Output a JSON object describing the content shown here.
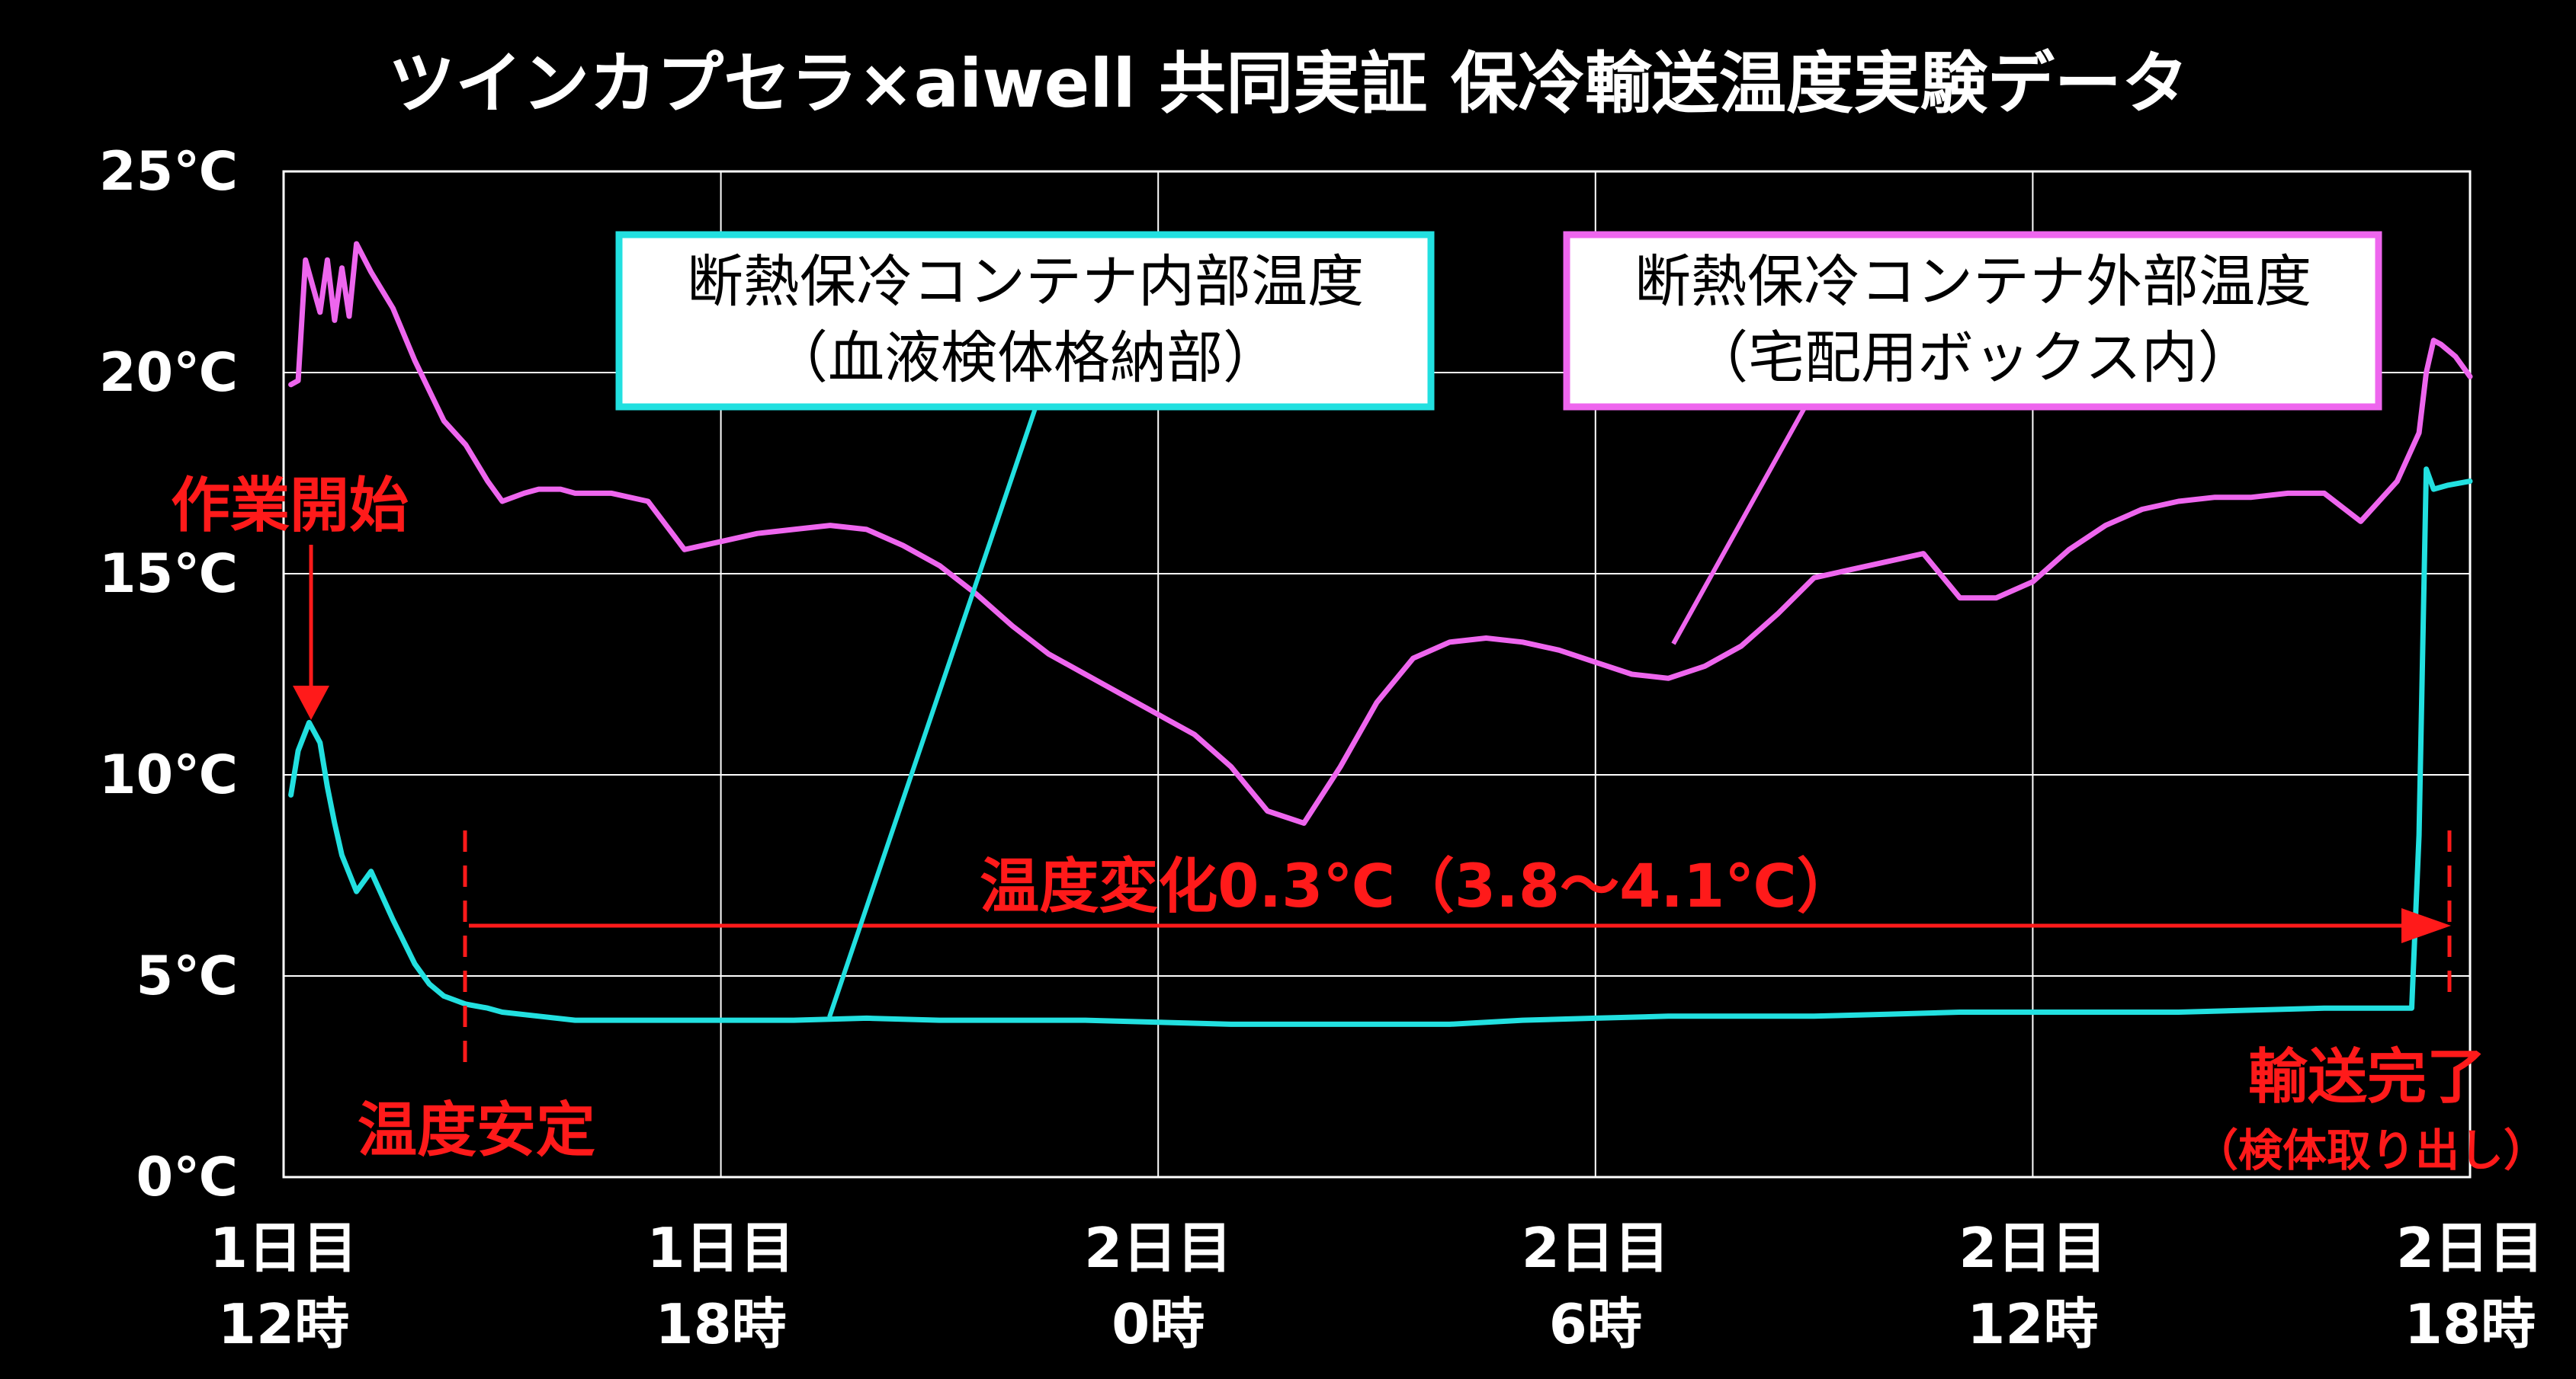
{
  "chart_data": {
    "type": "line",
    "title": "ツインカプセラ×aiwell 共同実証 保冷輸送温度実験データ",
    "y_ticks": [
      "0℃",
      "5℃",
      "10℃",
      "15℃",
      "20℃",
      "25℃"
    ],
    "ylim": [
      0,
      25
    ],
    "x_ticks": [
      {
        "day": "1日目",
        "time": "12時"
      },
      {
        "day": "1日目",
        "time": "18時"
      },
      {
        "day": "2日目",
        "time": "0時"
      },
      {
        "day": "2日目",
        "time": "6時"
      },
      {
        "day": "2日目",
        "time": "12時"
      },
      {
        "day": "2日目",
        "time": "18時"
      }
    ],
    "xlim_hours": [
      0,
      30
    ],
    "grid": true,
    "series": [
      {
        "name": "断熱保冷コンテナ外部温度（宅配用ボックス内）",
        "color": "#ee66ee",
        "x": [
          0.1,
          0.2,
          0.3,
          0.5,
          0.6,
          0.7,
          0.8,
          0.9,
          1.0,
          1.2,
          1.5,
          1.8,
          2.2,
          2.5,
          2.8,
          3.0,
          3.3,
          3.5,
          3.8,
          4.0,
          4.5,
          5.0,
          5.5,
          6.0,
          6.5,
          7.0,
          7.5,
          8.0,
          8.5,
          9.0,
          9.5,
          10.0,
          10.5,
          11.0,
          11.5,
          12.0,
          12.5,
          13.0,
          13.5,
          14.0,
          14.5,
          15.0,
          15.5,
          16.0,
          16.5,
          17.0,
          17.5,
          18.0,
          18.5,
          19.0,
          19.5,
          20.0,
          20.5,
          21.0,
          21.5,
          22.0,
          22.5,
          23.0,
          23.5,
          24.0,
          24.5,
          25.0,
          25.5,
          26.0,
          26.5,
          27.0,
          27.5,
          28.0,
          28.5,
          29.0,
          29.3,
          29.4,
          29.5,
          29.6,
          29.8,
          30.0
        ],
        "y": [
          19.7,
          19.8,
          22.8,
          21.5,
          22.8,
          21.3,
          22.6,
          21.4,
          23.2,
          22.5,
          21.6,
          20.3,
          18.8,
          18.2,
          17.3,
          16.8,
          17.0,
          17.1,
          17.1,
          17.0,
          17.0,
          16.8,
          15.6,
          15.8,
          16.0,
          16.1,
          16.2,
          16.1,
          15.7,
          15.2,
          14.5,
          13.7,
          13.0,
          12.5,
          12.0,
          11.5,
          11.0,
          10.2,
          9.1,
          8.8,
          10.2,
          11.8,
          12.9,
          13.3,
          13.4,
          13.3,
          13.1,
          12.8,
          12.5,
          12.4,
          12.7,
          13.2,
          14.0,
          14.9,
          15.1,
          15.3,
          15.5,
          14.4,
          14.4,
          14.8,
          15.6,
          16.2,
          16.6,
          16.8,
          16.9,
          16.9,
          17.0,
          17.0,
          16.3,
          17.3,
          18.5,
          20.0,
          20.8,
          20.7,
          20.4,
          19.9
        ]
      },
      {
        "name": "断熱保冷コンテナ内部温度（血液検体格納部）",
        "color": "#22e0e0",
        "x": [
          0.1,
          0.2,
          0.35,
          0.5,
          0.6,
          0.7,
          0.8,
          1.0,
          1.2,
          1.5,
          1.8,
          2.0,
          2.2,
          2.5,
          2.8,
          3.0,
          3.5,
          4.0,
          5.0,
          6.0,
          7.0,
          8.0,
          9.0,
          10.0,
          11.0,
          12.0,
          13.0,
          14.0,
          15.0,
          16.0,
          17.0,
          18.0,
          19.0,
          20.0,
          21.0,
          22.0,
          23.0,
          24.0,
          25.0,
          26.0,
          27.0,
          28.0,
          29.0,
          29.2,
          29.3,
          29.4,
          29.5,
          29.7,
          30.0
        ],
        "y": [
          9.5,
          10.6,
          11.3,
          10.8,
          9.7,
          8.8,
          8.0,
          7.1,
          7.6,
          6.4,
          5.3,
          4.8,
          4.5,
          4.3,
          4.2,
          4.1,
          4.0,
          3.9,
          3.9,
          3.9,
          3.9,
          3.95,
          3.9,
          3.9,
          3.9,
          3.85,
          3.8,
          3.8,
          3.8,
          3.8,
          3.9,
          3.95,
          4.0,
          4.0,
          4.0,
          4.05,
          4.1,
          4.1,
          4.1,
          4.1,
          4.15,
          4.2,
          4.2,
          4.2,
          8.5,
          17.6,
          17.1,
          17.2,
          17.3
        ]
      }
    ],
    "legends": [
      {
        "line1": "断熱保冷コンテナ内部温度",
        "line2": "（血液検体格納部）",
        "color": "#22e0e0"
      },
      {
        "line1": "断熱保冷コンテナ外部温度",
        "line2": "（宅配用ボックス内）",
        "color": "#ee66ee"
      }
    ],
    "annotations": {
      "work_start": "作業開始",
      "temp_stable": "温度安定",
      "temp_change": "温度変化0.3℃（3.8～4.1℃）",
      "transport_done": "輸送完了",
      "specimen_removed": "（検体取り出し）",
      "accent_color": "#ff1a1a"
    }
  }
}
